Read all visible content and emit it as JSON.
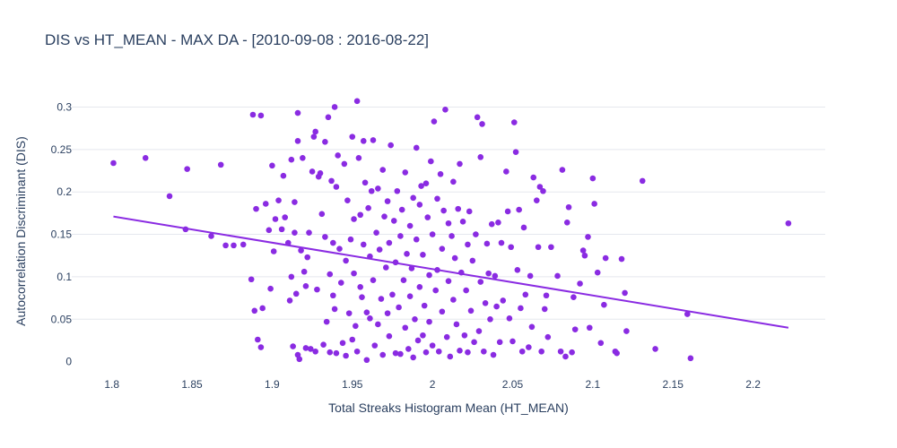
{
  "chart_data": {
    "type": "scatter",
    "title": "DIS vs HT_MEAN - MAX DA - [2010-09-08 : 2016-08-22]",
    "xlabel": "Total Streaks Histogram Mean (HT_MEAN)",
    "ylabel": "Autocorrelation Discriminant (DIS)",
    "xlim": [
      1.775,
      2.245
    ],
    "ylim": [
      -0.012,
      0.31
    ],
    "xticks": [
      1.8,
      1.85,
      1.9,
      1.95,
      2,
      2.05,
      2.1,
      2.15,
      2.2
    ],
    "xtick_labels": [
      "1.8",
      "1.85",
      "1.9",
      "1.95",
      "2",
      "2.05",
      "2.1",
      "2.15",
      "2.2"
    ],
    "yticks": [
      0,
      0.05,
      0.1,
      0.15,
      0.2,
      0.25,
      0.3
    ],
    "ytick_labels": [
      "0",
      "0.05",
      "0.1",
      "0.15",
      "0.2",
      "0.25",
      "0.3"
    ],
    "grid": true,
    "series": [
      {
        "name": "points",
        "color": "#8a2be2",
        "points": [
          [
            1.801,
            0.234
          ],
          [
            1.821,
            0.24
          ],
          [
            1.836,
            0.195
          ],
          [
            1.846,
            0.156
          ],
          [
            1.847,
            0.227
          ],
          [
            1.862,
            0.148
          ],
          [
            1.868,
            0.232
          ],
          [
            1.871,
            0.137
          ],
          [
            1.876,
            0.137
          ],
          [
            1.882,
            0.138
          ],
          [
            1.887,
            0.097
          ],
          [
            1.888,
            0.291
          ],
          [
            1.889,
            0.06
          ],
          [
            1.89,
            0.18
          ],
          [
            1.891,
            0.026
          ],
          [
            1.893,
            0.29
          ],
          [
            1.893,
            0.017
          ],
          [
            1.894,
            0.063
          ],
          [
            1.896,
            0.186
          ],
          [
            1.898,
            0.155
          ],
          [
            1.899,
            0.086
          ],
          [
            1.9,
            0.231
          ],
          [
            1.901,
            0.13
          ],
          [
            1.902,
            0.168
          ],
          [
            1.904,
            0.19
          ],
          [
            1.906,
            0.156
          ],
          [
            1.907,
            0.219
          ],
          [
            1.908,
            0.17
          ],
          [
            1.91,
            0.14
          ],
          [
            1.911,
            0.072
          ],
          [
            1.912,
            0.238
          ],
          [
            1.912,
            0.1
          ],
          [
            1.913,
            0.018
          ],
          [
            1.914,
            0.188
          ],
          [
            1.914,
            0.152
          ],
          [
            1.915,
            0.08
          ],
          [
            1.916,
            0.008
          ],
          [
            1.916,
            0.293
          ],
          [
            1.916,
            0.26
          ],
          [
            1.917,
            0.003
          ],
          [
            1.918,
            0.131
          ],
          [
            1.919,
            0.24
          ],
          [
            1.92,
            0.106
          ],
          [
            1.921,
            0.089
          ],
          [
            1.921,
            0.016
          ],
          [
            1.922,
            0.123
          ],
          [
            1.923,
            0.152
          ],
          [
            1.924,
            0.015
          ],
          [
            1.925,
            0.224
          ],
          [
            1.926,
            0.265
          ],
          [
            1.927,
            0.271
          ],
          [
            1.927,
            0.012
          ],
          [
            1.928,
            0.085
          ],
          [
            1.929,
            0.218
          ],
          [
            1.93,
            0.222
          ],
          [
            1.931,
            0.174
          ],
          [
            1.932,
            0.02
          ],
          [
            1.933,
            0.147
          ],
          [
            1.933,
            0.259
          ],
          [
            1.934,
            0.047
          ],
          [
            1.935,
            0.288
          ],
          [
            1.936,
            0.103
          ],
          [
            1.936,
            0.011
          ],
          [
            1.937,
            0.213
          ],
          [
            1.938,
            0.14
          ],
          [
            1.938,
            0.078
          ],
          [
            1.939,
            0.3
          ],
          [
            1.939,
            0.062
          ],
          [
            1.94,
            0.206
          ],
          [
            1.94,
            0.01
          ],
          [
            1.941,
            0.243
          ],
          [
            1.942,
            0.133
          ],
          [
            1.943,
            0.093
          ],
          [
            1.944,
            0.022
          ],
          [
            1.945,
            0.233
          ],
          [
            1.946,
            0.119
          ],
          [
            1.946,
            0.007
          ],
          [
            1.947,
            0.19
          ],
          [
            1.948,
            0.057
          ],
          [
            1.949,
            0.144
          ],
          [
            1.95,
            0.265
          ],
          [
            1.95,
            0.026
          ],
          [
            1.951,
            0.104
          ],
          [
            1.951,
            0.168
          ],
          [
            1.952,
            0.042
          ],
          [
            1.953,
            0.012
          ],
          [
            1.953,
            0.307
          ],
          [
            1.954,
            0.24
          ],
          [
            1.955,
            0.173
          ],
          [
            1.955,
            0.088
          ],
          [
            1.956,
            0.076
          ],
          [
            1.957,
            0.26
          ],
          [
            1.957,
            0.138
          ],
          [
            1.958,
            0.211
          ],
          [
            1.959,
            0.058
          ],
          [
            1.959,
            0.002
          ],
          [
            1.96,
            0.181
          ],
          [
            1.961,
            0.051
          ],
          [
            1.961,
            0.124
          ],
          [
            1.962,
            0.201
          ],
          [
            1.963,
            0.261
          ],
          [
            1.963,
            0.096
          ],
          [
            1.964,
            0.019
          ],
          [
            1.965,
            0.152
          ],
          [
            1.966,
            0.044
          ],
          [
            1.966,
            0.204
          ],
          [
            1.967,
            0.132
          ],
          [
            1.968,
            0.074
          ],
          [
            1.969,
            0.008
          ],
          [
            1.969,
            0.226
          ],
          [
            1.97,
            0.171
          ],
          [
            1.971,
            0.111
          ],
          [
            1.972,
            0.057
          ],
          [
            1.972,
            0.189
          ],
          [
            1.973,
            0.14
          ],
          [
            1.973,
            0.03
          ],
          [
            1.974,
            0.255
          ],
          [
            1.975,
            0.079
          ],
          [
            1.976,
            0.166
          ],
          [
            1.977,
            0.117
          ],
          [
            1.977,
            0.01
          ],
          [
            1.978,
            0.201
          ],
          [
            1.979,
            0.064
          ],
          [
            1.98,
            0.148
          ],
          [
            1.98,
            0.009
          ],
          [
            1.981,
            0.179
          ],
          [
            1.982,
            0.096
          ],
          [
            1.983,
            0.04
          ],
          [
            1.983,
            0.223
          ],
          [
            1.984,
            0.127
          ],
          [
            1.985,
            0.015
          ],
          [
            1.986,
            0.16
          ],
          [
            1.986,
            0.077
          ],
          [
            1.987,
            0.11
          ],
          [
            1.988,
            0.005
          ],
          [
            1.988,
            0.193
          ],
          [
            1.989,
            0.05
          ],
          [
            1.99,
            0.144
          ],
          [
            1.99,
            0.252
          ],
          [
            1.991,
            0.025
          ],
          [
            1.992,
            0.185
          ],
          [
            1.992,
            0.088
          ],
          [
            1.993,
            0.207
          ],
          [
            1.994,
            0.031
          ],
          [
            1.994,
            0.126
          ],
          [
            1.995,
            0.066
          ],
          [
            1.996,
            0.21
          ],
          [
            1.996,
            0.011
          ],
          [
            1.997,
            0.17
          ],
          [
            1.998,
            0.102
          ],
          [
            1.998,
            0.047
          ],
          [
            1.999,
            0.236
          ],
          [
            2.0,
            0.15
          ],
          [
            2.0,
            0.019
          ],
          [
            2.001,
            0.283
          ],
          [
            2.002,
            0.084
          ],
          [
            2.003,
            0.192
          ],
          [
            2.003,
            0.108
          ],
          [
            2.004,
            0.012
          ],
          [
            2.005,
            0.221
          ],
          [
            2.006,
            0.133
          ],
          [
            2.006,
            0.059
          ],
          [
            2.007,
            0.178
          ],
          [
            2.008,
            0.297
          ],
          [
            2.009,
            0.029
          ],
          [
            2.01,
            0.163
          ],
          [
            2.01,
            0.095
          ],
          [
            2.011,
            0.006
          ],
          [
            2.012,
            0.148
          ],
          [
            2.013,
            0.212
          ],
          [
            2.013,
            0.073
          ],
          [
            2.014,
            0.122
          ],
          [
            2.015,
            0.044
          ],
          [
            2.016,
            0.18
          ],
          [
            2.017,
            0.013
          ],
          [
            2.017,
            0.233
          ],
          [
            2.018,
            0.105
          ],
          [
            2.019,
            0.165
          ],
          [
            2.02,
            0.031
          ],
          [
            2.021,
            0.084
          ],
          [
            2.022,
            0.138
          ],
          [
            2.022,
            0.011
          ],
          [
            2.023,
            0.177
          ],
          [
            2.024,
            0.06
          ],
          [
            2.025,
            0.119
          ],
          [
            2.026,
            0.023
          ],
          [
            2.027,
            0.15
          ],
          [
            2.028,
            0.288
          ],
          [
            2.029,
            0.036
          ],
          [
            2.03,
            0.241
          ],
          [
            2.03,
            0.094
          ],
          [
            2.031,
            0.28
          ],
          [
            2.032,
            0.012
          ],
          [
            2.033,
            0.069
          ],
          [
            2.034,
            0.139
          ],
          [
            2.035,
            0.104
          ],
          [
            2.036,
            0.05
          ],
          [
            2.037,
            0.162
          ],
          [
            2.038,
            0.008
          ],
          [
            2.039,
            0.101
          ],
          [
            2.04,
            0.065
          ],
          [
            2.041,
            0.164
          ],
          [
            2.042,
            0.023
          ],
          [
            2.043,
            0.14
          ],
          [
            2.044,
            0.072
          ],
          [
            2.046,
            0.224
          ],
          [
            2.047,
            0.177
          ],
          [
            2.048,
            0.051
          ],
          [
            2.049,
            0.135
          ],
          [
            2.05,
            0.024
          ],
          [
            2.051,
            0.282
          ],
          [
            2.052,
            0.247
          ],
          [
            2.053,
            0.108
          ],
          [
            2.054,
            0.179
          ],
          [
            2.055,
            0.063
          ],
          [
            2.056,
            0.012
          ],
          [
            2.057,
            0.158
          ],
          [
            2.058,
            0.079
          ],
          [
            2.06,
            0.017
          ],
          [
            2.061,
            0.101
          ],
          [
            2.062,
            0.041
          ],
          [
            2.063,
            0.217
          ],
          [
            2.065,
            0.19
          ],
          [
            2.066,
            0.135
          ],
          [
            2.067,
            0.206
          ],
          [
            2.068,
            0.012
          ],
          [
            2.069,
            0.201
          ],
          [
            2.07,
            0.062
          ],
          [
            2.071,
            0.078
          ],
          [
            2.072,
            0.029
          ],
          [
            2.074,
            0.135
          ],
          [
            2.078,
            0.101
          ],
          [
            2.08,
            0.012
          ],
          [
            2.081,
            0.226
          ],
          [
            2.083,
            0.006
          ],
          [
            2.084,
            0.164
          ],
          [
            2.085,
            0.182
          ],
          [
            2.087,
            0.011
          ],
          [
            2.088,
            0.076
          ],
          [
            2.089,
            0.038
          ],
          [
            2.092,
            0.092
          ],
          [
            2.094,
            0.131
          ],
          [
            2.095,
            0.125
          ],
          [
            2.097,
            0.147
          ],
          [
            2.098,
            0.04
          ],
          [
            2.1,
            0.216
          ],
          [
            2.101,
            0.186
          ],
          [
            2.103,
            0.105
          ],
          [
            2.105,
            0.022
          ],
          [
            2.107,
            0.067
          ],
          [
            2.108,
            0.122
          ],
          [
            2.114,
            0.012
          ],
          [
            2.115,
            0.01
          ],
          [
            2.118,
            0.121
          ],
          [
            2.12,
            0.081
          ],
          [
            2.121,
            0.036
          ],
          [
            2.131,
            0.213
          ],
          [
            2.139,
            0.015
          ],
          [
            2.159,
            0.056
          ],
          [
            2.161,
            0.004
          ],
          [
            2.222,
            0.163
          ]
        ]
      },
      {
        "name": "trend",
        "type": "line",
        "color": "#8a2be2",
        "x": [
          1.801,
          2.222
        ],
        "y": [
          0.171,
          0.04
        ]
      }
    ]
  }
}
